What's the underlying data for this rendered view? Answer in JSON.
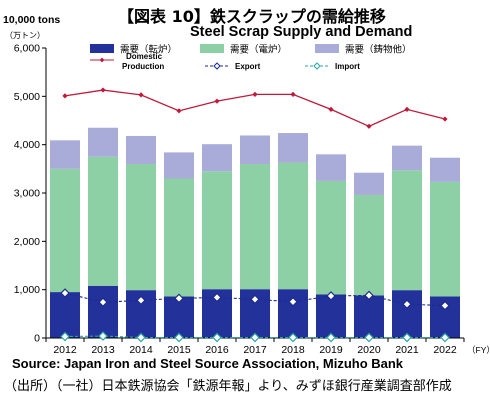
{
  "header": {
    "title_jp": "【図表 10】鉄スクラップの需給推移",
    "title_en": "Steel Scrap Supply and Demand",
    "unit_main": "10,000 tons",
    "unit_sub": "（万トン）"
  },
  "footer": {
    "source_en": "Source: Japan Iron and Steel Source Association, Mizuho Bank",
    "source_jp": "（出所）（一社）日本鉄源協会「鉄源年報」より、みずほ銀行産業調査部作成"
  },
  "chart_data": {
    "type": "bar",
    "stacked": true,
    "categories": [
      "2012",
      "2013",
      "2014",
      "2015",
      "2016",
      "2017",
      "2018",
      "2019",
      "2020",
      "2021",
      "2022"
    ],
    "x_unit_label": "（FY）",
    "ylim": [
      0,
      6000
    ],
    "yticks": [
      0,
      1000,
      2000,
      3000,
      4000,
      5000,
      6000
    ],
    "ytick_labels": [
      "0",
      "1,000",
      "2,000",
      "3,000",
      "4,000",
      "5,000",
      "6,000"
    ],
    "grid": false,
    "legend_position": "top",
    "series": [
      {
        "name": "需要（転炉）",
        "kind": "bar",
        "color": "#23329a",
        "values": [
          950,
          1080,
          990,
          860,
          1010,
          1010,
          1010,
          900,
          880,
          990,
          860
        ]
      },
      {
        "name": "需要（電炉）",
        "kind": "bar",
        "color": "#8ed0a5",
        "values": [
          2550,
          2670,
          2610,
          2440,
          2440,
          2590,
          2620,
          2350,
          2080,
          2480,
          2370
        ]
      },
      {
        "name": "需要（鋳物他）",
        "kind": "bar",
        "color": "#a9abd8",
        "values": [
          590,
          600,
          580,
          540,
          560,
          590,
          610,
          550,
          460,
          510,
          500
        ]
      },
      {
        "name": "Domestic Production",
        "kind": "line",
        "color": "#c0193a",
        "marker": "diamond-small",
        "values": [
          5010,
          5130,
          5030,
          4700,
          4900,
          5040,
          5040,
          4730,
          4380,
          4730,
          4530
        ]
      },
      {
        "name": "Export",
        "kind": "line",
        "color": "#1d2b8c",
        "marker": "diamond-open",
        "values": [
          930,
          740,
          780,
          820,
          840,
          800,
          750,
          870,
          880,
          700,
          670
        ]
      },
      {
        "name": "Import",
        "kind": "line",
        "color": "#29a5a5",
        "marker": "diamond-open-teal",
        "values": [
          30,
          40,
          10,
          10,
          10,
          10,
          10,
          10,
          10,
          10,
          10
        ]
      }
    ]
  }
}
